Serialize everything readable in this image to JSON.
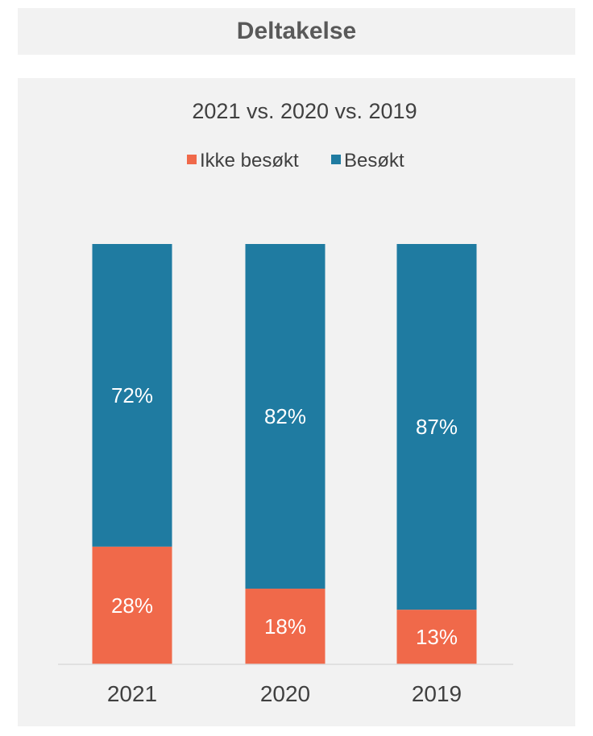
{
  "header": {
    "title": "Deltakelse"
  },
  "chart_data": {
    "type": "bar",
    "stacked": true,
    "percent": true,
    "title": "2021 vs. 2020 vs. 2019",
    "xlabel": "",
    "ylabel": "",
    "categories": [
      "2021",
      "2020",
      "2019"
    ],
    "ylim": [
      0,
      100
    ],
    "grid": false,
    "legend_position": "top",
    "series": [
      {
        "name": "Ikke besøkt",
        "values": [
          28,
          18,
          13
        ],
        "color": "#f0694a",
        "labels": [
          "28%",
          "18%",
          "13%"
        ]
      },
      {
        "name": "Besøkt",
        "values": [
          72,
          82,
          87
        ],
        "color": "#1f7ba1",
        "labels": [
          "72%",
          "82%",
          "87%"
        ]
      }
    ]
  }
}
